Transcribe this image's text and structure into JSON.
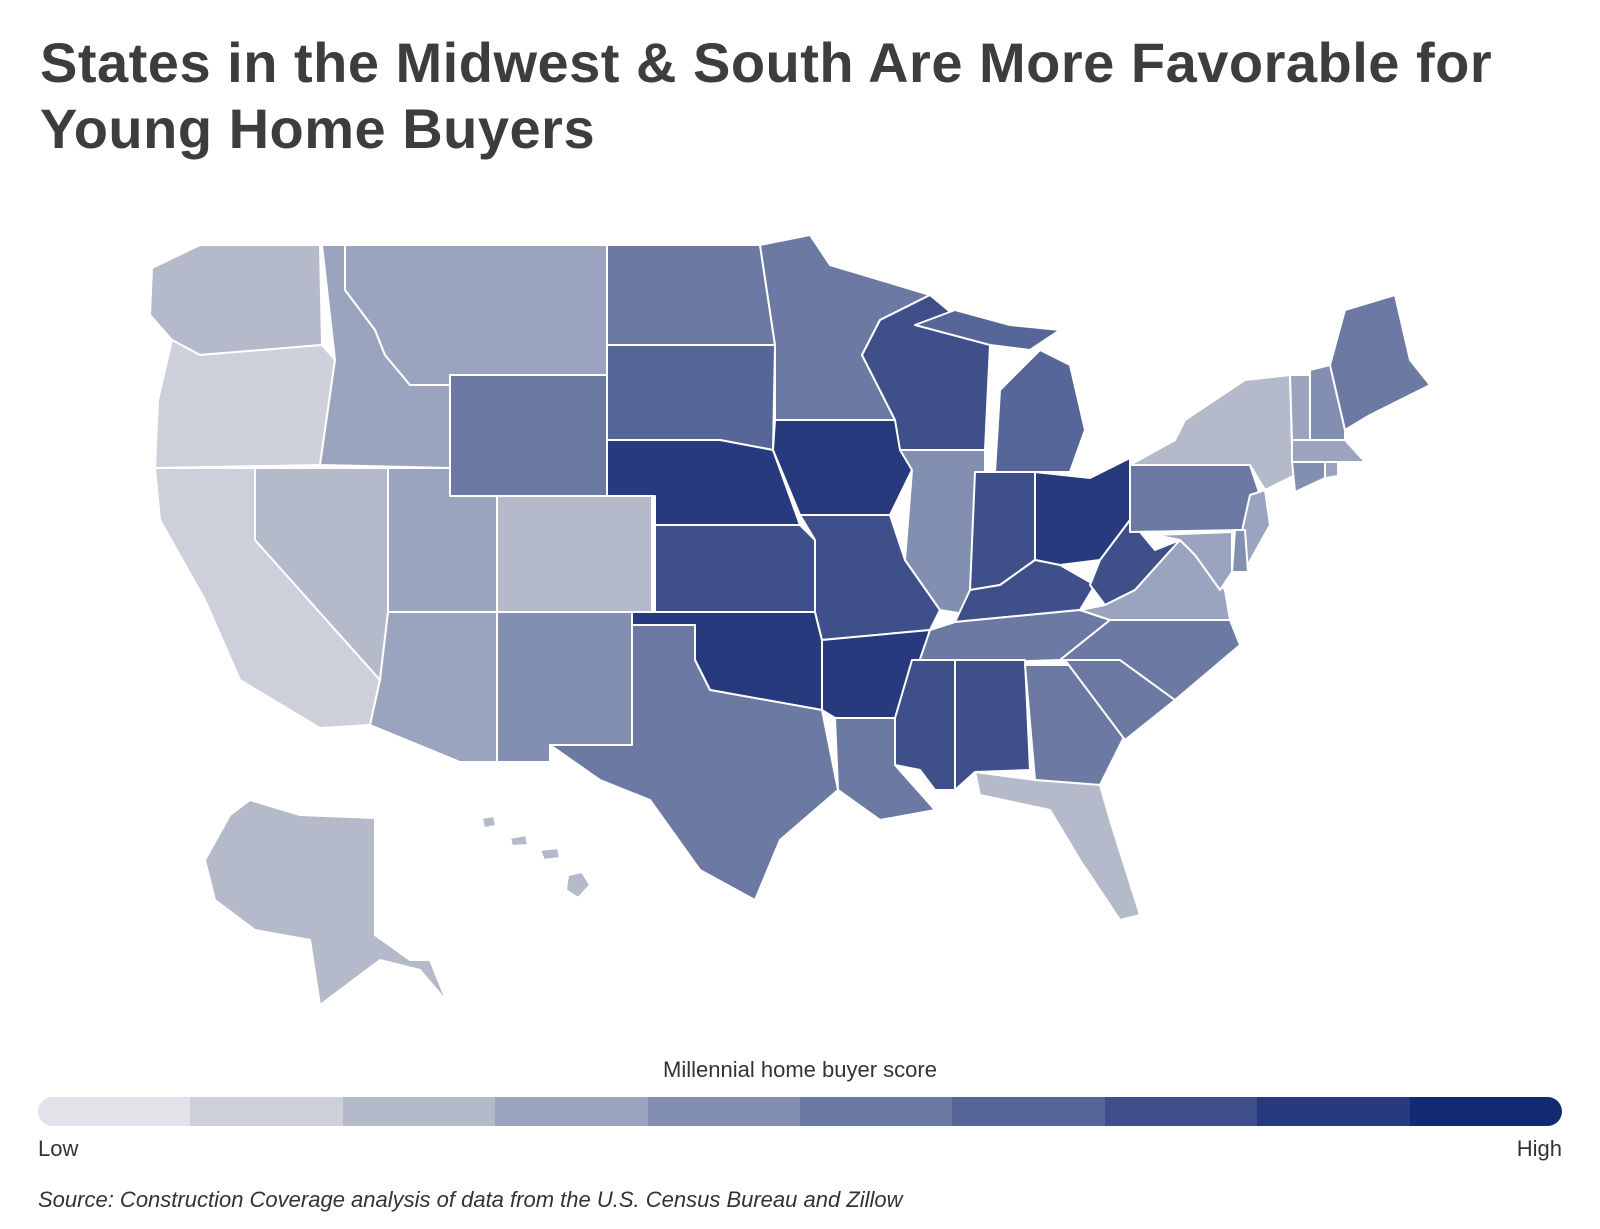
{
  "title": "States in the Midwest & South Are More Favorable for Young Home Buyers",
  "legend": {
    "title": "Millennial home buyer score",
    "low_label": "Low",
    "high_label": "High",
    "colors": [
      "#e2e3e8",
      "#cdd0db",
      "#b5bacb",
      "#9ba4bf",
      "#828fb1",
      "#6b79a3",
      "#566698",
      "#3e4f8a",
      "#263a7d",
      "#142a70"
    ]
  },
  "source": "Source: Construction Coverage analysis of data from the U.S. Census Bureau and Zillow",
  "map_data": {
    "metric": "Millennial home buyer score",
    "scale": "10-step sequential, light (Low) to dark blue (High)",
    "state_levels": {
      "WA": 2,
      "OR": 1,
      "CA": 1,
      "NV": 2,
      "ID": 3,
      "MT": 3,
      "WY": 5,
      "UT": 3,
      "CO": 2,
      "AZ": 3,
      "NM": 4,
      "ND": 5,
      "SD": 6,
      "NE": 8,
      "KS": 7,
      "OK": 8,
      "TX": 5,
      "MN": 5,
      "IA": 8,
      "MO": 7,
      "AR": 8,
      "LA": 5,
      "WI": 7,
      "IL": 4,
      "MI": 6,
      "IN": 7,
      "OH": 8,
      "KY": 7,
      "TN": 5,
      "MS": 7,
      "AL": 7,
      "GA": 5,
      "FL": 2,
      "SC": 5,
      "NC": 5,
      "VA": 3,
      "WV": 7,
      "PA": 5,
      "NY": 2,
      "NJ": 3,
      "DE": 4,
      "MD": 3,
      "CT": 4,
      "RI": 3,
      "MA": 3,
      "VT": 3,
      "NH": 4,
      "ME": 5,
      "AK": 2,
      "HI": 2
    }
  }
}
